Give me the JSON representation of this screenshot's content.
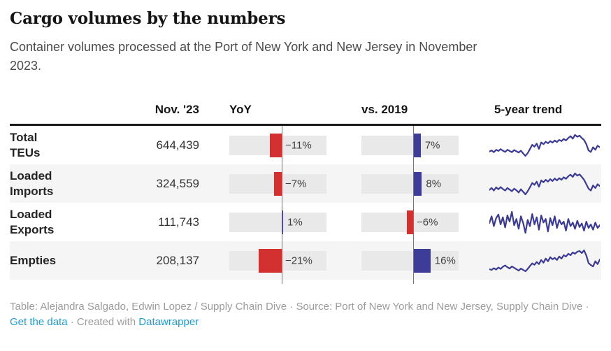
{
  "chart_data": {
    "type": "table",
    "title": "Cargo volumes by the numbers",
    "subtitle": "Container volumes processed at the Port of New York and New Jersey in November 2023.",
    "columns": [
      "",
      "Nov. '23",
      "YoY",
      "vs. 2019",
      "5-year trend"
    ],
    "bar_axis_value": 0,
    "rows": [
      {
        "label": "Total TEUs",
        "nov_23": 644439,
        "nov_23_display": "644,439",
        "yoy_pct": -11,
        "yoy_display": "−11%",
        "vs_2019_pct": 7,
        "vs_2019_display": "7%",
        "trend": [
          36,
          40,
          34,
          42,
          38,
          44,
          39,
          35,
          42,
          38,
          34,
          41,
          37,
          33,
          39,
          30,
          22,
          31,
          44,
          58,
          52,
          62,
          45,
          66,
          60,
          68,
          63,
          70,
          65,
          72,
          67,
          74,
          70,
          77,
          72,
          80,
          86,
          78,
          90,
          84,
          88,
          80,
          74,
          60,
          40,
          35,
          50,
          42,
          55,
          50
        ]
      },
      {
        "label": "Loaded Imports",
        "nov_23": 324559,
        "nov_23_display": "324,559",
        "yoy_pct": -7,
        "yoy_display": "−7%",
        "vs_2019_pct": 8,
        "vs_2019_display": "8%",
        "trend": [
          38,
          44,
          36,
          46,
          40,
          47,
          41,
          36,
          44,
          39,
          34,
          42,
          37,
          30,
          40,
          32,
          24,
          34,
          46,
          60,
          54,
          64,
          48,
          68,
          62,
          70,
          64,
          72,
          66,
          74,
          68,
          75,
          70,
          78,
          73,
          81,
          86,
          79,
          90,
          83,
          87,
          79,
          70,
          56,
          42,
          36,
          52,
          44,
          56,
          50
        ]
      },
      {
        "label": "Loaded Exports",
        "nov_23": 111743,
        "nov_23_display": "111,743",
        "yoy_pct": 1,
        "yoy_display": "1%",
        "vs_2019_pct": -6,
        "vs_2019_display": "−6%",
        "trend": [
          55,
          70,
          48,
          66,
          74,
          52,
          68,
          45,
          72,
          58,
          80,
          50,
          64,
          42,
          70,
          55,
          33,
          62,
          48,
          75,
          52,
          68,
          40,
          72,
          56,
          64,
          36,
          66,
          50,
          70,
          44,
          62,
          52,
          58,
          38,
          64,
          48,
          56,
          42,
          60,
          46,
          54,
          38,
          58,
          44,
          52,
          40,
          56,
          44,
          50
        ]
      },
      {
        "label": "Empties",
        "nov_23": 208137,
        "nov_23_display": "208,137",
        "yoy_pct": -21,
        "yoy_display": "−21%",
        "vs_2019_pct": 16,
        "vs_2019_display": "16%",
        "trend": [
          30,
          28,
          33,
          29,
          35,
          31,
          37,
          41,
          36,
          32,
          38,
          34,
          30,
          26,
          32,
          28,
          24,
          31,
          39,
          47,
          43,
          51,
          45,
          57,
          49,
          61,
          53,
          65,
          59,
          63,
          57,
          67,
          61,
          71,
          67,
          75,
          71,
          79,
          75,
          81,
          83,
          77,
          85,
          70,
          48,
          42,
          38,
          53,
          45,
          58
        ]
      }
    ]
  },
  "footer": {
    "credit": "Table: Alejandra Salgado, Edwin Lopez / Supply Chain Dive",
    "separator": " · ",
    "source": "Source: Port of New York and New Jersey, Supply Chain Dive",
    "link_get_data": "Get the data",
    "created_with": "Created with ",
    "link_datawrapper": "Datawrapper"
  },
  "colors": {
    "negative_bar": "#d23130",
    "positive_bar": "#3e3c99",
    "sparkline": "#3b3a98",
    "axis_line": "#757575",
    "bar_track": "#e9e9e9",
    "row_stripe": "#f5f5f5",
    "header_rule": "#191919",
    "link": "#1d9bd8"
  }
}
